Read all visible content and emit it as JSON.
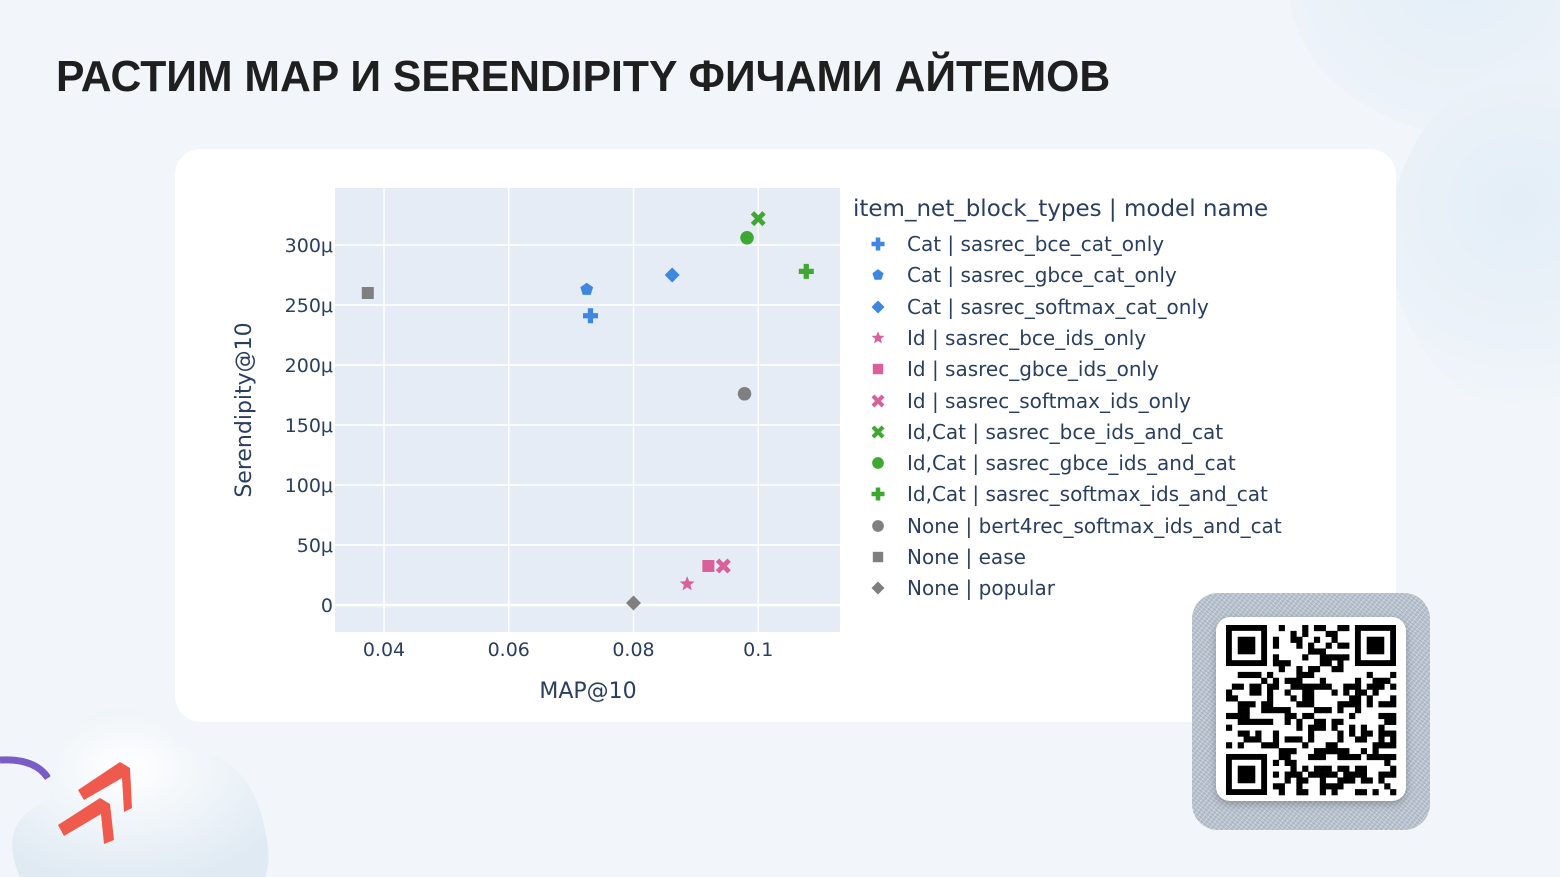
{
  "slide": {
    "title": "РАСТИМ MAP И SERENDIPITY ФИЧАМИ АЙТЕМОВ"
  },
  "colors": {
    "background": "#f2f6fa",
    "card": "#ffffff",
    "plot_bg": "#e5ecf6",
    "grid": "#ffffff",
    "axis_text": "#2a3f5f",
    "cat_blue": "#3d87e0",
    "id_pink": "#d9609a",
    "idcat_green": "#3ea832",
    "none_gray": "#7f7f7f",
    "logo_red": "#ef5a4c",
    "arc_purple": "#7a5cc7"
  },
  "chart_data": {
    "type": "scatter",
    "title": "",
    "xlabel": "MAP@10",
    "ylabel": "Serendipity@10",
    "xlim": [
      0.032,
      0.113
    ],
    "ylim": [
      -22,
      348
    ],
    "y_unit": "μ (×1e-6)",
    "grid": true,
    "legend_position": "right",
    "x_ticks": [
      {
        "value": 0.04,
        "label": "0.04"
      },
      {
        "value": 0.06,
        "label": "0.06"
      },
      {
        "value": 0.08,
        "label": "0.08"
      },
      {
        "value": 0.1,
        "label": "0.1"
      }
    ],
    "y_ticks": [
      {
        "value": 0,
        "label": "0"
      },
      {
        "value": 50,
        "label": "50μ"
      },
      {
        "value": 100,
        "label": "100μ"
      },
      {
        "value": 150,
        "label": "150μ"
      },
      {
        "value": 200,
        "label": "200μ"
      },
      {
        "value": 250,
        "label": "250μ"
      },
      {
        "value": 300,
        "label": "300μ"
      }
    ],
    "legend_title": "item_net_block_types  |  model name",
    "series": [
      {
        "name": "Cat  |  sasrec_bce_cat_only",
        "group": "Cat",
        "model": "sasrec_bce_cat_only",
        "symbol": "cross",
        "color": "#3d87e0",
        "x": 0.0731,
        "y": 241
      },
      {
        "name": "Cat  |  sasrec_gbce_cat_only",
        "group": "Cat",
        "model": "sasrec_gbce_cat_only",
        "symbol": "pentagon",
        "color": "#3d87e0",
        "x": 0.0725,
        "y": 263
      },
      {
        "name": "Cat  |  sasrec_softmax_cat_only",
        "group": "Cat",
        "model": "sasrec_softmax_cat_only",
        "symbol": "diamond",
        "color": "#3d87e0",
        "x": 0.0862,
        "y": 275
      },
      {
        "name": "Id  |  sasrec_bce_ids_only",
        "group": "Id",
        "model": "sasrec_bce_ids_only",
        "symbol": "star",
        "color": "#d9609a",
        "x": 0.0886,
        "y": 17.5
      },
      {
        "name": "Id  |  sasrec_gbce_ids_only",
        "group": "Id",
        "model": "sasrec_gbce_ids_only",
        "symbol": "square",
        "color": "#d9609a",
        "x": 0.092,
        "y": 32.5
      },
      {
        "name": "Id  |  sasrec_softmax_ids_only",
        "group": "Id",
        "model": "sasrec_softmax_ids_only",
        "symbol": "x",
        "color": "#d9609a",
        "x": 0.0944,
        "y": 32.5
      },
      {
        "name": "Id,Cat  |  sasrec_bce_ids_and_cat",
        "group": "Id,Cat",
        "model": "sasrec_bce_ids_and_cat",
        "symbol": "x",
        "color": "#3ea832",
        "x": 0.1,
        "y": 322
      },
      {
        "name": "Id,Cat  |  sasrec_gbce_ids_and_cat",
        "group": "Id,Cat",
        "model": "sasrec_gbce_ids_and_cat",
        "symbol": "circle",
        "color": "#3ea832",
        "x": 0.0982,
        "y": 306
      },
      {
        "name": "Id,Cat  |  sasrec_softmax_ids_and_cat",
        "group": "Id,Cat",
        "model": "sasrec_softmax_ids_and_cat",
        "symbol": "cross",
        "color": "#3ea832",
        "x": 0.1077,
        "y": 278
      },
      {
        "name": "None  |  bert4rec_softmax_ids_and_cat",
        "group": "None",
        "model": "bert4rec_softmax_ids_and_cat",
        "symbol": "circle",
        "color": "#7f7f7f",
        "x": 0.0978,
        "y": 176
      },
      {
        "name": "None  |  ease",
        "group": "None",
        "model": "ease",
        "symbol": "square",
        "color": "#7f7f7f",
        "x": 0.0374,
        "y": 260
      },
      {
        "name": "None  |  popular",
        "group": "None",
        "model": "popular",
        "symbol": "diamond",
        "color": "#7f7f7f",
        "x": 0.08,
        "y": 1.7
      }
    ]
  },
  "qr": {
    "label": "QR code"
  }
}
